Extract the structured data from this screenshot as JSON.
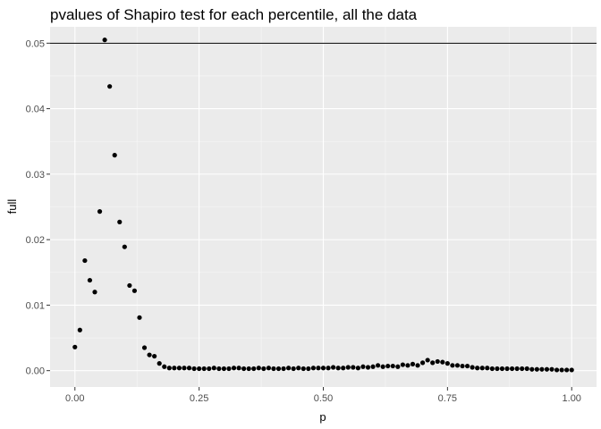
{
  "chart_data": {
    "type": "scatter",
    "title": "pvalues of Shapiro test for each percentile, all the data",
    "xlabel": "p",
    "ylabel": "full",
    "xlim": [
      -0.05,
      1.05
    ],
    "ylim": [
      -0.0025,
      0.0525
    ],
    "x_ticks": [
      0.0,
      0.25,
      0.5,
      0.75,
      1.0
    ],
    "x_tick_labels": [
      "0.00",
      "0.25",
      "0.50",
      "0.75",
      "1.00"
    ],
    "y_ticks": [
      0.0,
      0.01,
      0.02,
      0.03,
      0.04,
      0.05
    ],
    "y_tick_labels": [
      "0.00",
      "0.01",
      "0.02",
      "0.03",
      "0.04",
      "0.05"
    ],
    "reference_line": {
      "orientation": "horizontal",
      "y": 0.05
    },
    "grid": true,
    "panel_background": "#ebebeb",
    "grid_color": "#ffffff",
    "point_color": "#000000",
    "x": [
      0,
      0.01,
      0.02,
      0.03,
      0.04,
      0.05,
      0.06,
      0.07,
      0.08,
      0.09,
      0.1,
      0.11,
      0.12,
      0.13,
      0.14,
      0.15,
      0.16,
      0.17,
      0.18,
      0.19,
      0.2,
      0.21,
      0.22,
      0.23,
      0.24,
      0.25,
      0.26,
      0.27,
      0.28,
      0.29,
      0.3,
      0.31,
      0.32,
      0.33,
      0.34,
      0.35,
      0.36,
      0.37,
      0.38,
      0.39,
      0.4,
      0.41,
      0.42,
      0.43,
      0.44,
      0.45,
      0.46,
      0.47,
      0.48,
      0.49,
      0.5,
      0.51,
      0.52,
      0.53,
      0.54,
      0.55,
      0.56,
      0.57,
      0.58,
      0.59,
      0.6,
      0.61,
      0.62,
      0.63,
      0.64,
      0.65,
      0.66,
      0.67,
      0.68,
      0.69,
      0.7,
      0.71,
      0.72,
      0.73,
      0.74,
      0.75,
      0.76,
      0.77,
      0.78,
      0.79,
      0.8,
      0.81,
      0.82,
      0.83,
      0.84,
      0.85,
      0.86,
      0.87,
      0.88,
      0.89,
      0.9,
      0.91,
      0.92,
      0.93,
      0.94,
      0.95,
      0.96,
      0.97,
      0.98,
      0.99,
      1.0
    ],
    "y": [
      0.0036,
      0.0062,
      0.0168,
      0.0138,
      0.012,
      0.0243,
      0.0505,
      0.0434,
      0.0329,
      0.0227,
      0.0189,
      0.013,
      0.0122,
      0.0081,
      0.0035,
      0.0024,
      0.0022,
      0.0011,
      0.0006,
      0.0004,
      0.0004,
      0.0004,
      0.0004,
      0.0004,
      0.0003,
      0.0003,
      0.0003,
      0.0003,
      0.0004,
      0.0003,
      0.0003,
      0.0003,
      0.0004,
      0.0004,
      0.0003,
      0.0003,
      0.0003,
      0.0004,
      0.0003,
      0.0004,
      0.0003,
      0.0003,
      0.0003,
      0.0004,
      0.0003,
      0.0004,
      0.0003,
      0.0003,
      0.0004,
      0.0004,
      0.0004,
      0.0004,
      0.0005,
      0.0004,
      0.0004,
      0.0005,
      0.0005,
      0.0004,
      0.0006,
      0.0005,
      0.0006,
      0.0008,
      0.0006,
      0.0007,
      0.0007,
      0.0006,
      0.0009,
      0.0008,
      0.001,
      0.0008,
      0.0012,
      0.0016,
      0.0012,
      0.0014,
      0.0013,
      0.0011,
      0.0008,
      0.0008,
      0.0007,
      0.0007,
      0.0005,
      0.0004,
      0.0004,
      0.0004,
      0.0003,
      0.0003,
      0.0003,
      0.0003,
      0.0003,
      0.0003,
      0.0003,
      0.0003,
      0.0002,
      0.0002,
      0.0002,
      0.0002,
      0.0002,
      0.0001,
      0.0001,
      0.0001,
      0.0001
    ]
  }
}
